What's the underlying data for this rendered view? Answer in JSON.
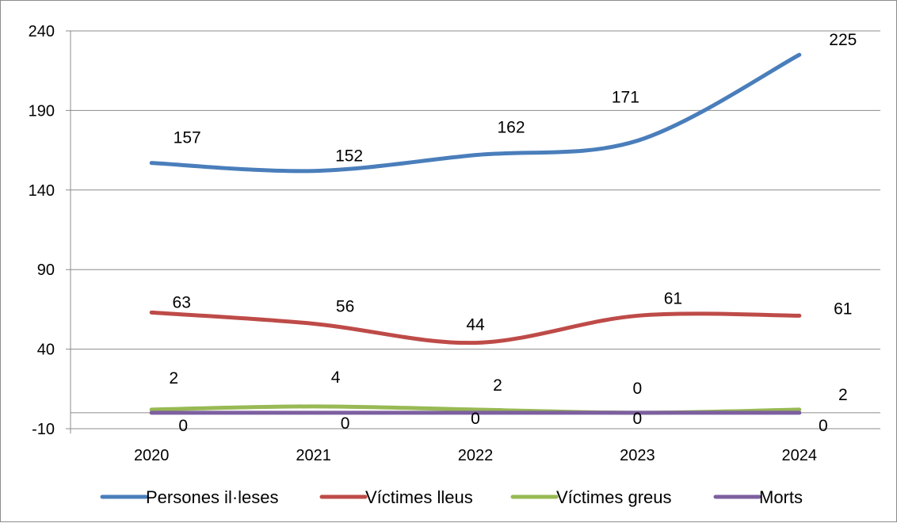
{
  "chart_data": {
    "type": "line",
    "smooth": true,
    "categories": [
      "2020",
      "2021",
      "2022",
      "2023",
      "2024"
    ],
    "ylim": [
      -10,
      240
    ],
    "yticks": [
      -10,
      40,
      90,
      140,
      190,
      240
    ],
    "grid": "horizontal",
    "legend_position": "bottom",
    "series": [
      {
        "name": "Persones il·leses",
        "values": [
          157,
          152,
          162,
          171,
          225
        ],
        "color": "#4a7ebb"
      },
      {
        "name": "Víctimes lleus",
        "values": [
          63,
          56,
          44,
          61,
          61
        ],
        "color": "#be4b48"
      },
      {
        "name": "Víctimes greus",
        "values": [
          2,
          4,
          2,
          0,
          2
        ],
        "color": "#98b954"
      },
      {
        "name": "Morts",
        "values": [
          0,
          0,
          0,
          0,
          0
        ],
        "color": "#7d60a0"
      }
    ]
  }
}
